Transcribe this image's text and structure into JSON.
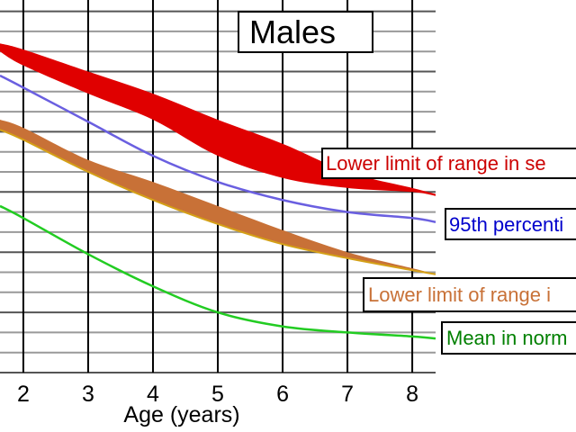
{
  "chart_data": {
    "type": "area",
    "title": "Males",
    "xlabel": "Age (years)",
    "ylabel": "",
    "xlim": [
      1.64,
      8.36
    ],
    "ylim": [
      0,
      18
    ],
    "x_ticks": [
      "2",
      "3",
      "4",
      "5",
      "6",
      "7",
      "8"
    ],
    "grid": true,
    "x": [
      1.64,
      2,
      3,
      4,
      5,
      6,
      7,
      8,
      8.36
    ],
    "series": [
      {
        "name": "Lower limit of range in se",
        "kind": "band",
        "color": "#e00000",
        "text_color": "#cc0000",
        "upper": [
          16.4,
          16.1,
          15.0,
          13.9,
          12.6,
          11.4,
          10.0,
          9.2,
          8.9
        ],
        "lower": [
          16.0,
          15.3,
          13.9,
          12.6,
          10.8,
          9.7,
          9.2,
          9.0,
          8.8
        ]
      },
      {
        "name": "95th percenti",
        "kind": "line",
        "color": "#6a5fe0",
        "text_color": "#0000cc",
        "values": [
          14.8,
          14.2,
          12.5,
          10.8,
          9.5,
          8.6,
          8.0,
          7.7,
          7.5
        ]
      },
      {
        "name": "Lower limit of range i",
        "kind": "band",
        "color": "#c87137",
        "edge_color": "#d4a017",
        "text_color": "#c87137",
        "upper": [
          12.6,
          12.2,
          10.6,
          9.5,
          8.3,
          7.1,
          6.0,
          5.2,
          4.9
        ],
        "lower": [
          12.1,
          11.6,
          10.0,
          8.6,
          7.4,
          6.4,
          5.7,
          5.1,
          4.9
        ]
      },
      {
        "name": "Mean in norm",
        "kind": "line",
        "color": "#22cc22",
        "text_color": "#008000",
        "values": [
          8.3,
          7.7,
          5.9,
          4.3,
          3.0,
          2.3,
          2.0,
          1.8,
          1.7
        ]
      }
    ]
  }
}
